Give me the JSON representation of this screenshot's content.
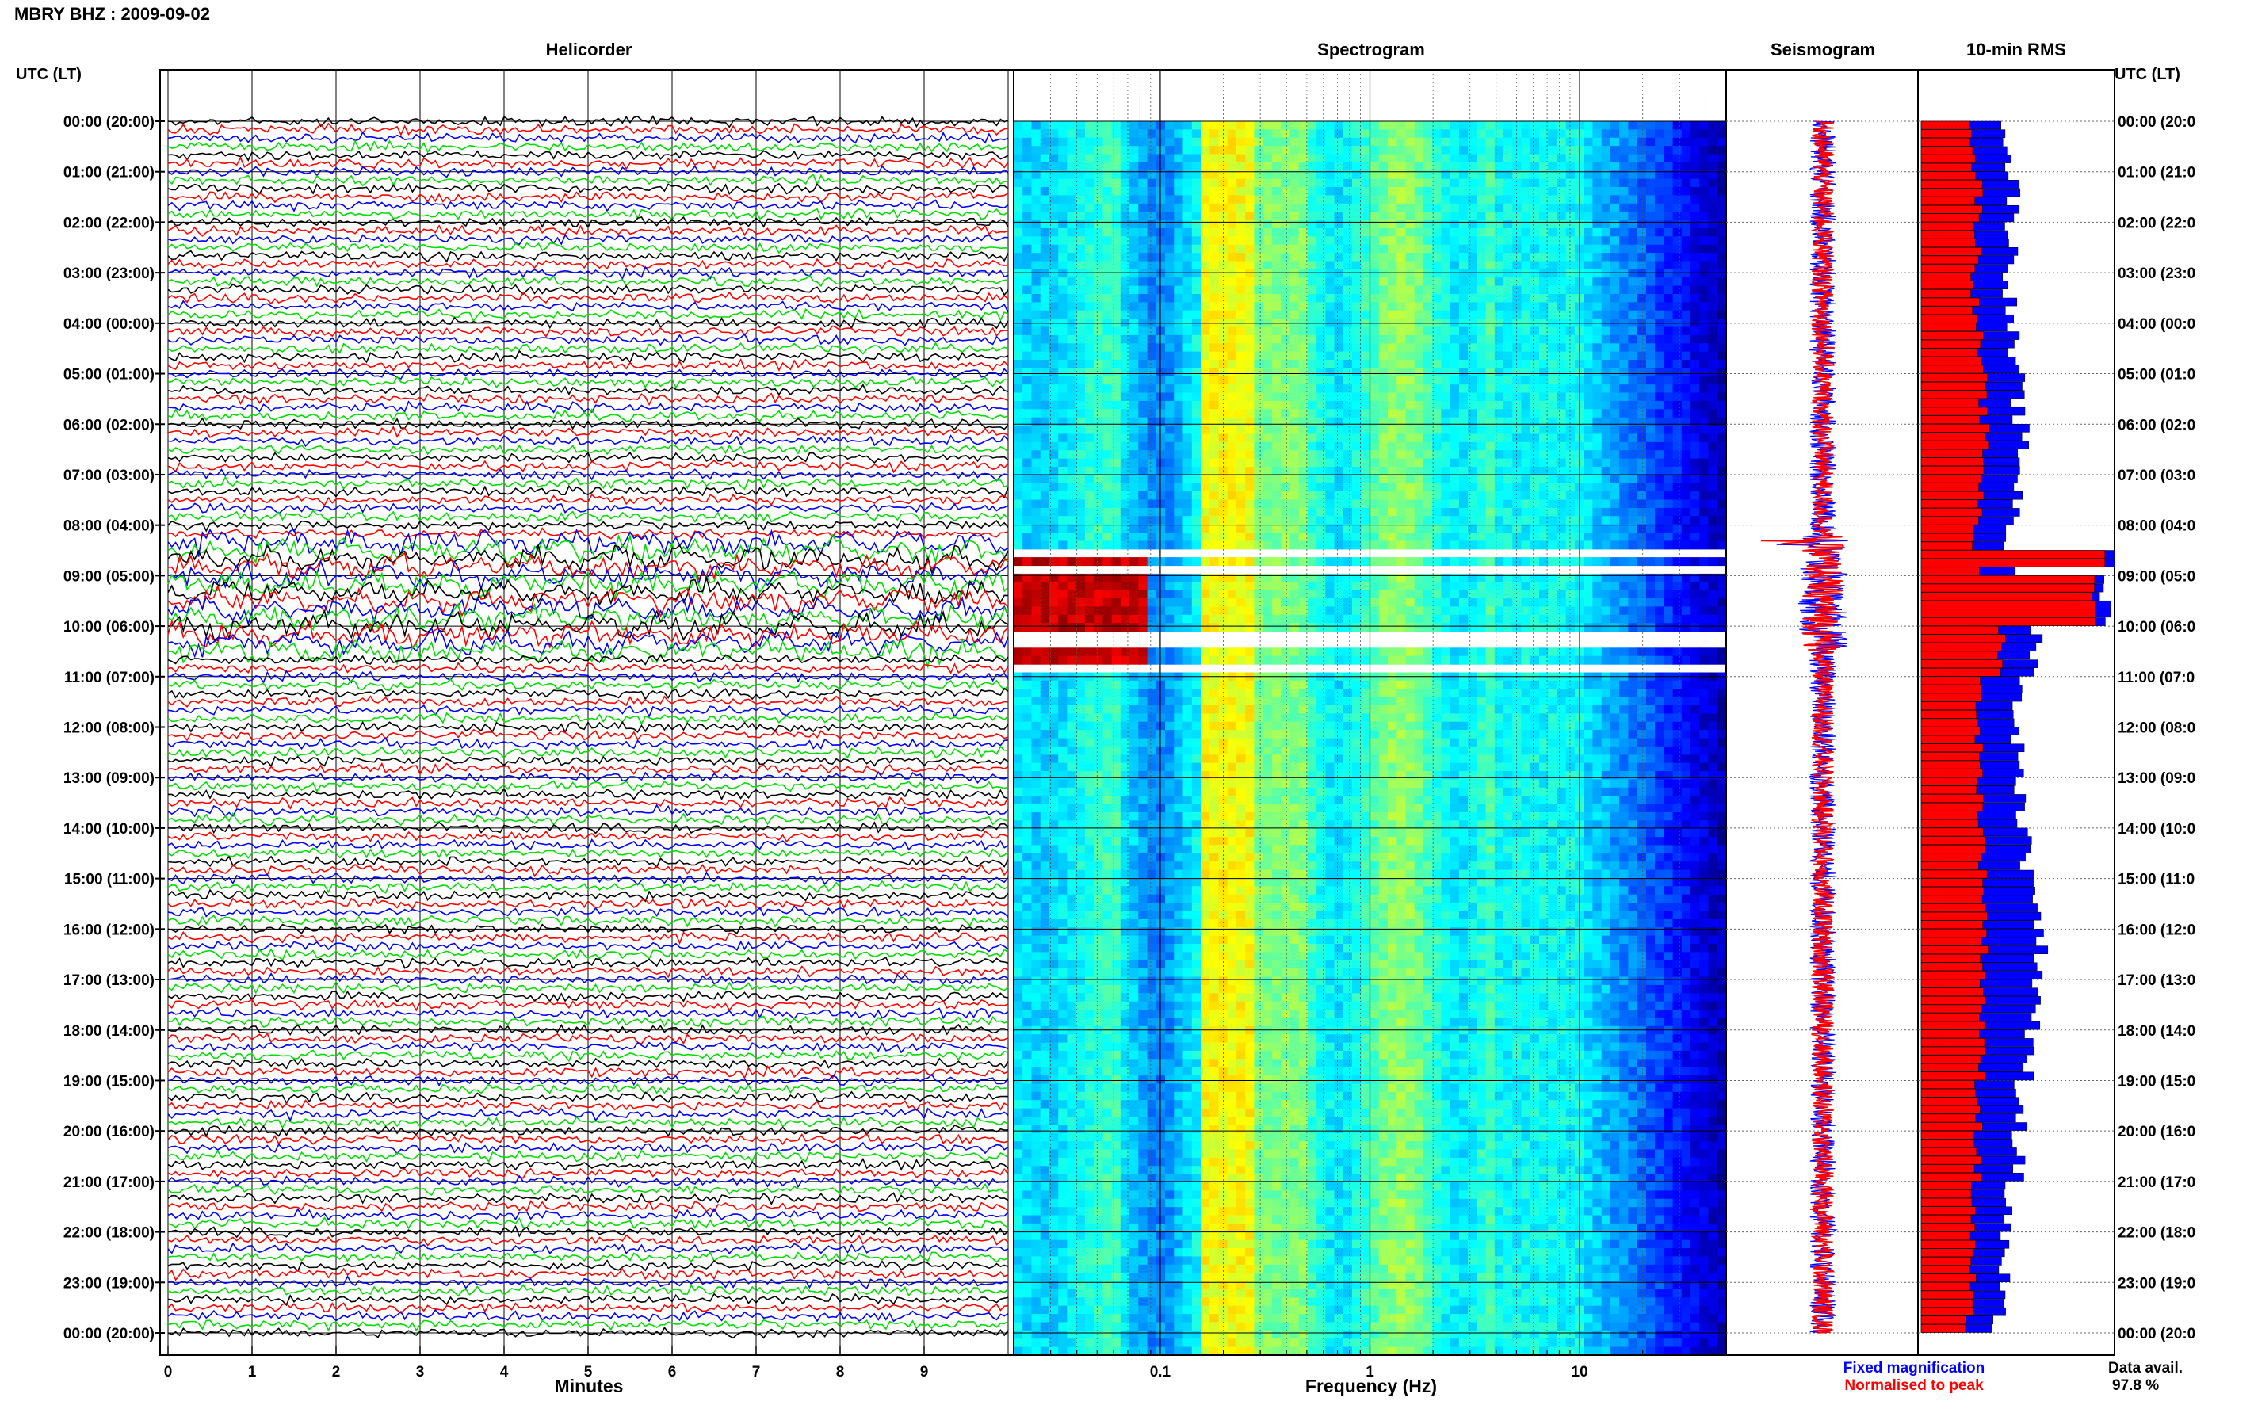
{
  "header": {
    "station_title": "MBRY BHZ : 2009-09-02",
    "utc_label_left": "UTC (LT)",
    "utc_label_right": "UTC (LT)"
  },
  "panels": {
    "helicorder_title": "Helicorder",
    "spectrogram_title": "Spectrogram",
    "seismogram_title": "Seismogram",
    "rms_title": "10-min RMS"
  },
  "axes": {
    "minutes_label": "Minutes",
    "frequency_label": "Frequency (Hz)",
    "minute_ticks": [
      "0",
      "1",
      "2",
      "3",
      "4",
      "5",
      "6",
      "7",
      "8",
      "9"
    ],
    "frequency_ticks": [
      "0.1",
      "1",
      "10"
    ],
    "time_labels_left": [
      "00:00 (20:00)",
      "01:00 (21:00)",
      "02:00 (22:00)",
      "03:00 (23:00)",
      "04:00 (00:00)",
      "05:00 (01:00)",
      "06:00 (02:00)",
      "07:00 (03:00)",
      "08:00 (04:00)",
      "09:00 (05:00)",
      "10:00 (06:00)",
      "11:00 (07:00)",
      "12:00 (08:00)",
      "13:00 (09:00)",
      "14:00 (10:00)",
      "15:00 (11:00)",
      "16:00 (12:00)",
      "17:00 (13:00)",
      "18:00 (14:00)",
      "19:00 (15:00)",
      "20:00 (16:00)",
      "21:00 (17:00)",
      "22:00 (18:00)",
      "23:00 (19:00)",
      "00:00 (20:00)"
    ],
    "time_labels_right": [
      "00:00 (20:0",
      "01:00 (21:0",
      "02:00 (22:0",
      "03:00 (23:0",
      "04:00 (00:0",
      "05:00 (01:0",
      "06:00 (02:0",
      "07:00 (03:0",
      "08:00 (04:0",
      "09:00 (05:0",
      "10:00 (06:0",
      "11:00 (07:0",
      "12:00 (08:0",
      "13:00 (09:0",
      "14:00 (10:0",
      "15:00 (11:0",
      "16:00 (12:0",
      "17:00 (13:0",
      "18:00 (14:0",
      "19:00 (15:0",
      "20:00 (16:0",
      "21:00 (17:0",
      "22:00 (18:0",
      "23:00 (19:0",
      "00:00 (20:0"
    ]
  },
  "legend": {
    "fixed_label": "Fixed magnification",
    "normalised_label": "Normalised to peak",
    "fixed_color": "#0000ff",
    "normalised_color": "#ff0000",
    "data_avail_label": "Data avail.",
    "data_avail_value": "97.8 %"
  },
  "colors": {
    "trace_cycle": [
      "#000000",
      "#ff0000",
      "#0000ff",
      "#00dd00"
    ]
  },
  "chart_data": [
    {
      "type": "line",
      "title": "Helicorder",
      "xlabel": "Minutes",
      "x_range": [
        0,
        10
      ],
      "hours": 24,
      "traces_per_hour": 6,
      "event_window_utc_hours": [
        8.2,
        10.5
      ]
    },
    {
      "type": "heatmap",
      "title": "Spectrogram",
      "xlabel": "Frequency (Hz)",
      "x_scale": "log",
      "x_range": [
        0.02,
        50
      ],
      "y_range_utc_hours": [
        0,
        24
      ],
      "gaps_utc_hours": [
        [
          8.3,
          8.4
        ],
        [
          8.55,
          8.65
        ],
        [
          9.9,
          10.1
        ],
        [
          10.45,
          10.6
        ]
      ]
    },
    {
      "type": "line",
      "title": "Seismogram",
      "y_range_utc_hours": [
        0,
        24
      ],
      "peak_event_utc_hours": 8.35
    },
    {
      "type": "bar",
      "title": "10-min RMS",
      "series": [
        {
          "name": "Fixed magnification",
          "color": "#0000ff"
        },
        {
          "name": "Normalised to peak",
          "color": "#ff0000"
        }
      ],
      "hourly_rms_fixed": [
        0.45,
        0.48,
        0.47,
        0.46,
        0.47,
        0.5,
        0.52,
        0.5,
        0.45,
        0.95,
        0.6,
        0.5,
        0.5,
        0.52,
        0.55,
        0.6,
        0.62,
        0.6,
        0.55,
        0.52,
        0.5,
        0.45,
        0.42,
        0.4
      ],
      "hourly_rms_normalised": [
        0.27,
        0.3,
        0.29,
        0.28,
        0.3,
        0.32,
        0.33,
        0.31,
        0.28,
        0.9,
        0.42,
        0.3,
        0.3,
        0.31,
        0.32,
        0.33,
        0.33,
        0.32,
        0.31,
        0.3,
        0.29,
        0.27,
        0.26,
        0.25
      ]
    }
  ]
}
